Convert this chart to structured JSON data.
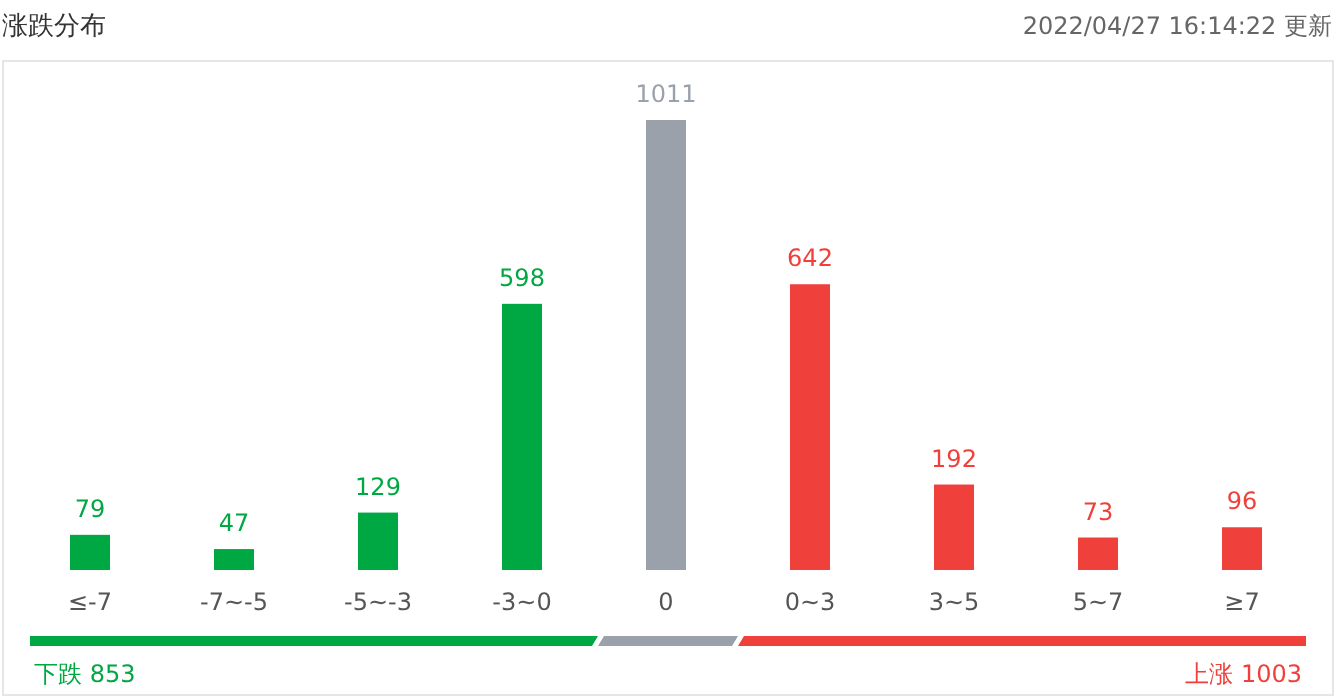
{
  "chart_data": {
    "type": "bar",
    "title": "涨跌分布",
    "subtitle": "2022/04/27 16:14:22 更新",
    "categories": [
      "≤-7",
      "-7~-5",
      "-5~-3",
      "-3~0",
      "0",
      "0~3",
      "3~5",
      "5~7",
      "≥7"
    ],
    "values": [
      79,
      47,
      129,
      598,
      1011,
      642,
      192,
      73,
      96
    ],
    "colors": [
      "#00a843",
      "#00a843",
      "#00a843",
      "#00a843",
      "#9aa1aa",
      "#f0403c",
      "#f0403c",
      "#f0403c",
      "#f0403c"
    ],
    "data_labels": true,
    "annotations": [
      "下跌 853",
      "上涨 1003"
    ]
  }
}
